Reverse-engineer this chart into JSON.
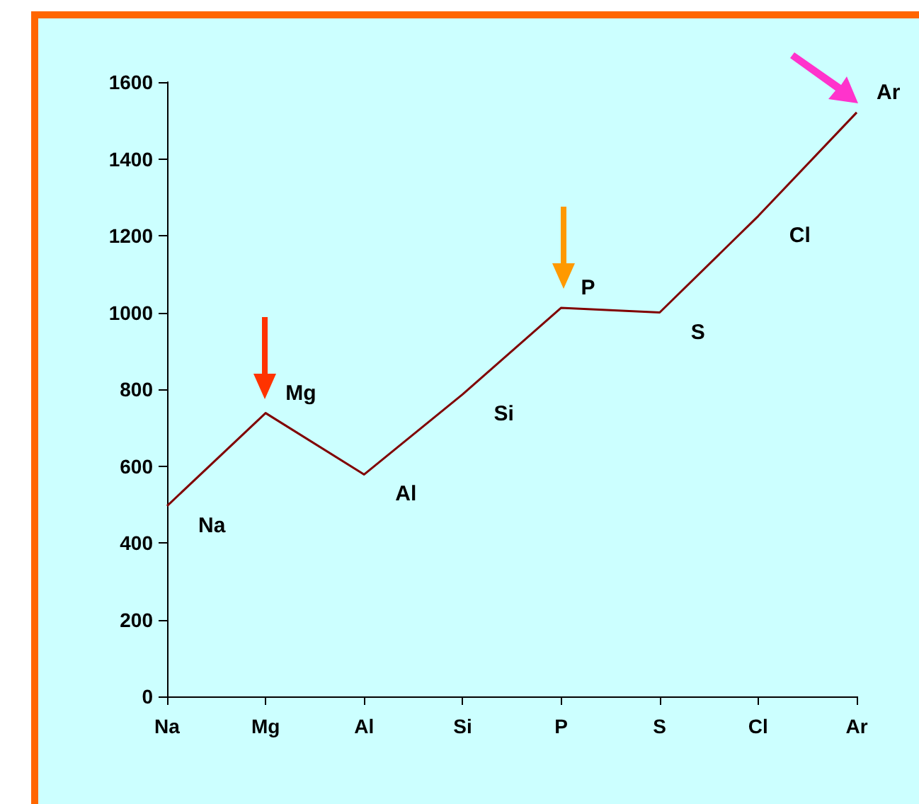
{
  "chart_data": {
    "type": "line",
    "categories": [
      "Na",
      "Mg",
      "Al",
      "Si",
      "P",
      "S",
      "Cl",
      "Ar"
    ],
    "series": [
      {
        "color": "#800000",
        "values": [
          496,
          738,
          578,
          787,
          1012,
          1000,
          1251,
          1521
        ]
      }
    ],
    "ylim": [
      0,
      1600
    ],
    "yticks": [
      0,
      200,
      400,
      600,
      800,
      1000,
      1200,
      1400,
      1600
    ],
    "grid": false,
    "legend": false,
    "marker": "none",
    "line_style": "solid",
    "annotations": [
      {
        "text": "Na",
        "x": "Na",
        "y": 496
      },
      {
        "text": "Mg",
        "x": "Mg",
        "y": 738
      },
      {
        "text": "Al",
        "x": "Al",
        "y": 578
      },
      {
        "text": "Si",
        "x": "Si",
        "y": 787
      },
      {
        "text": "P",
        "x": "P",
        "y": 1012
      },
      {
        "text": "S",
        "x": "S",
        "y": 1000
      },
      {
        "text": "Cl",
        "x": "Cl",
        "y": 1251
      },
      {
        "text": "Ar",
        "x": "Ar",
        "y": 1521
      }
    ]
  }
}
